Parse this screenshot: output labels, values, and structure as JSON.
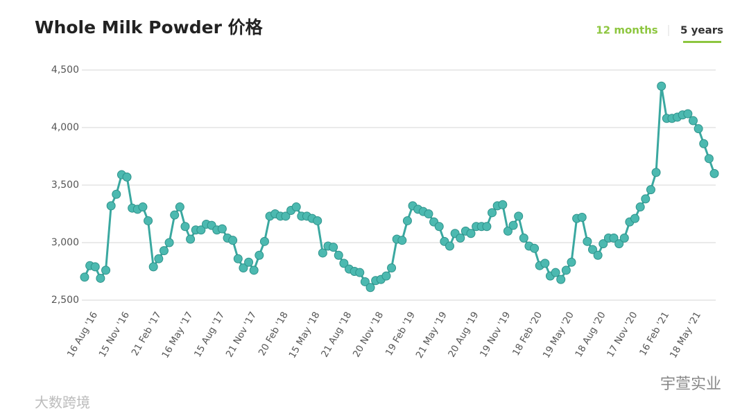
{
  "chart_data": {
    "type": "line",
    "title": "Whole Milk Powder 价格",
    "tabs": [
      "12 months",
      "5 years"
    ],
    "watermarks": [
      "宇萱实业",
      "大数跨境"
    ],
    "color": "#3aa8a0",
    "grid": true,
    "ylim": [
      2500,
      4500
    ],
    "yticks": [
      {
        "value": 2500,
        "label": "2,500"
      },
      {
        "value": 3000,
        "label": "3,000"
      },
      {
        "value": 3500,
        "label": "3,500"
      },
      {
        "value": 4000,
        "label": "4,000"
      },
      {
        "value": 4500,
        "label": "4,500"
      }
    ],
    "categories": [
      null,
      null,
      "16 Aug '16",
      null,
      null,
      null,
      null,
      null,
      "15 Nov '16",
      null,
      null,
      null,
      null,
      null,
      "21 Feb '17",
      null,
      null,
      null,
      null,
      null,
      "16 May '17",
      null,
      null,
      null,
      null,
      null,
      "15 Aug '17",
      null,
      null,
      null,
      null,
      null,
      "21 Nov '17",
      null,
      null,
      null,
      null,
      null,
      "20 Feb '18",
      null,
      null,
      null,
      null,
      null,
      "15 May '18",
      null,
      null,
      null,
      null,
      null,
      "21 Aug '18",
      null,
      null,
      null,
      null,
      null,
      "20 Nov '18",
      null,
      null,
      null,
      null,
      null,
      "19 Feb '19",
      null,
      null,
      null,
      null,
      null,
      "21 May '19",
      null,
      null,
      null,
      null,
      null,
      "20 Aug '19",
      null,
      null,
      null,
      null,
      null,
      "19 Nov '19",
      null,
      null,
      null,
      null,
      null,
      "18 Feb '20",
      null,
      null,
      null,
      null,
      null,
      "19 May '20",
      null,
      null,
      null,
      null,
      null,
      "18 Aug '20",
      null,
      null,
      null,
      null,
      null,
      "17 Nov '20",
      null,
      null,
      null,
      null,
      null,
      "16 Feb '21",
      null,
      null,
      null,
      null,
      null,
      "18 May '21",
      null,
      null,
      null
    ],
    "values": [
      2700,
      2800,
      2790,
      2690,
      2760,
      3320,
      3420,
      3590,
      3570,
      3300,
      3290,
      3310,
      3190,
      2790,
      2860,
      2930,
      3000,
      3240,
      3310,
      3140,
      3030,
      3110,
      3110,
      3160,
      3150,
      3110,
      3120,
      3040,
      3020,
      2860,
      2780,
      2830,
      2760,
      2890,
      3010,
      3230,
      3250,
      3230,
      3230,
      3280,
      3310,
      3230,
      3230,
      3210,
      3190,
      2910,
      2970,
      2960,
      2890,
      2820,
      2770,
      2750,
      2740,
      2660,
      2610,
      2670,
      2680,
      2710,
      2780,
      3030,
      3020,
      3190,
      3320,
      3290,
      3270,
      3250,
      3180,
      3140,
      3010,
      2970,
      3080,
      3040,
      3100,
      3080,
      3140,
      3140,
      3140,
      3260,
      3320,
      3330,
      3100,
      3150,
      3230,
      3040,
      2970,
      2950,
      2800,
      2820,
      2710,
      2740,
      2680,
      2760,
      2830,
      3210,
      3220,
      3010,
      2940,
      2890,
      2990,
      3040,
      3040,
      2990,
      3040,
      3180,
      3210,
      3310,
      3380,
      3460,
      3610,
      4360,
      4080,
      4080,
      4090,
      4110,
      4120,
      4060,
      3990,
      3860,
      3730,
      3600
    ]
  }
}
